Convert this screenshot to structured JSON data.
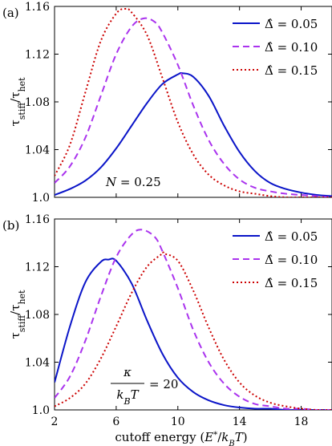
{
  "chart_data": [
    {
      "type": "line",
      "panel_label": "(a)",
      "ylabel": "τstiff/τhet",
      "xlabel": "",
      "xlim": [
        2,
        20
      ],
      "ylim": [
        1.0,
        1.16
      ],
      "xticks": [
        2,
        6,
        10,
        14,
        18
      ],
      "yticks": [
        1.0,
        1.04,
        1.08,
        1.12,
        1.16
      ],
      "ytick_labels": [
        "1.0",
        "1.04",
        "1.08",
        "1.12",
        "1.16"
      ],
      "xtick_labels": [],
      "legend_position": "top-right",
      "annotation": "N = 0.25",
      "series": [
        {
          "name": "Δ̂ = 0.05",
          "color": "#0a14c8",
          "dash": "solid",
          "x": [
            2,
            3,
            4,
            5,
            6,
            7,
            8,
            9,
            10,
            10.3,
            11,
            12,
            13,
            14,
            15,
            16,
            17,
            18,
            19,
            20
          ],
          "y": [
            1.002,
            1.007,
            1.014,
            1.025,
            1.041,
            1.06,
            1.079,
            1.095,
            1.103,
            1.104,
            1.101,
            1.085,
            1.06,
            1.038,
            1.022,
            1.012,
            1.007,
            1.004,
            1.002,
            1.001
          ]
        },
        {
          "name": "Δ̂ = 0.10",
          "color": "#aa33ee",
          "dash": "dashed",
          "x": [
            2,
            3,
            4,
            5,
            6,
            7,
            7.8,
            8.5,
            9,
            10,
            11,
            12,
            13,
            14,
            15,
            16,
            17,
            18,
            19,
            20
          ],
          "y": [
            1.012,
            1.026,
            1.05,
            1.085,
            1.12,
            1.143,
            1.15,
            1.147,
            1.138,
            1.111,
            1.077,
            1.048,
            1.028,
            1.015,
            1.008,
            1.005,
            1.003,
            1.002,
            1.001,
            1.0
          ]
        },
        {
          "name": "Δ̂ = 0.15",
          "color": "#cc0000",
          "dash": "dotted",
          "x": [
            2,
            3,
            4,
            5,
            6,
            6.6,
            7,
            8,
            9,
            10,
            11,
            12,
            13,
            14,
            15,
            16,
            17,
            18,
            19,
            20
          ],
          "y": [
            1.018,
            1.044,
            1.088,
            1.131,
            1.154,
            1.158,
            1.155,
            1.136,
            1.1,
            1.063,
            1.036,
            1.019,
            1.01,
            1.005,
            1.003,
            1.001,
            1.0,
            1.0,
            1.0,
            1.0
          ]
        }
      ]
    },
    {
      "type": "line",
      "panel_label": "(b)",
      "ylabel": "τstiff/τhet",
      "xlabel": "cutoff energy (E*/kBT)",
      "xlim": [
        2,
        20
      ],
      "ylim": [
        1.0,
        1.16
      ],
      "xticks": [
        2,
        6,
        10,
        14,
        18
      ],
      "yticks": [
        1.0,
        1.04,
        1.08,
        1.12,
        1.16
      ],
      "ytick_labels": [
        "1.0",
        "1.04",
        "1.08",
        "1.12",
        "1.16"
      ],
      "xtick_labels": [
        "2",
        "6",
        "10",
        "14",
        "18"
      ],
      "legend_position": "top-right",
      "annotation": "κ / kBT = 20",
      "series": [
        {
          "name": "Δ̂ = 0.05",
          "color": "#0a14c8",
          "dash": "solid",
          "x": [
            2,
            3,
            4,
            5,
            5.5,
            6,
            7,
            8,
            9,
            10,
            11,
            12,
            13,
            14,
            15,
            16,
            17,
            18,
            19,
            20
          ],
          "y": [
            1.023,
            1.07,
            1.107,
            1.124,
            1.126,
            1.125,
            1.106,
            1.075,
            1.047,
            1.027,
            1.015,
            1.008,
            1.004,
            1.002,
            1.001,
            1.001,
            1.0,
            1.0,
            1.0,
            1.0
          ]
        },
        {
          "name": "Δ̂ = 0.10",
          "color": "#aa33ee",
          "dash": "dashed",
          "x": [
            2,
            3,
            4,
            5,
            6,
            7,
            7.7,
            8.5,
            9,
            10,
            11,
            12,
            13,
            14,
            15,
            16,
            17,
            18,
            19,
            20
          ],
          "y": [
            1.01,
            1.028,
            1.058,
            1.095,
            1.128,
            1.147,
            1.151,
            1.145,
            1.133,
            1.102,
            1.067,
            1.04,
            1.022,
            1.011,
            1.005,
            1.003,
            1.001,
            1.001,
            1.0,
            1.0
          ]
        },
        {
          "name": "Δ̂ = 0.15",
          "color": "#cc0000",
          "dash": "dotted",
          "x": [
            2,
            3,
            4,
            5,
            6,
            7,
            8,
            9,
            9.1,
            10,
            11,
            12,
            13,
            14,
            15,
            16,
            17,
            18,
            19,
            20
          ],
          "y": [
            1.003,
            1.01,
            1.022,
            1.043,
            1.07,
            1.098,
            1.12,
            1.131,
            1.131,
            1.125,
            1.1,
            1.069,
            1.042,
            1.023,
            1.012,
            1.006,
            1.003,
            1.001,
            1.0,
            1.0
          ]
        }
      ]
    }
  ]
}
